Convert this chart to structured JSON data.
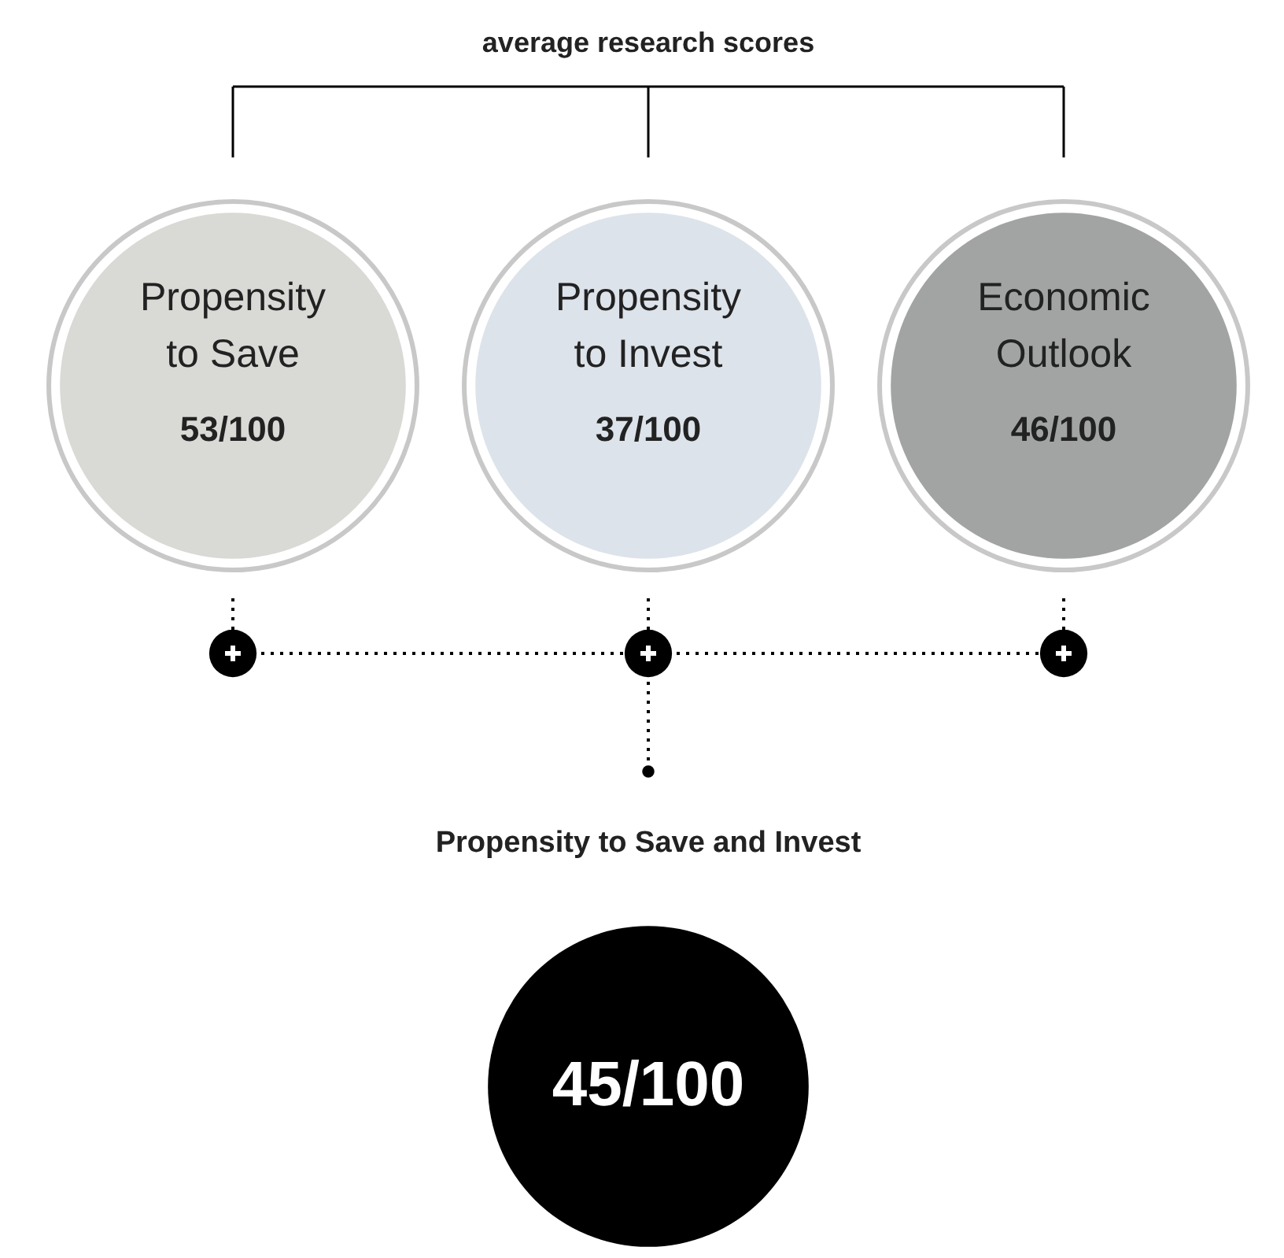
{
  "chart_data": {
    "type": "other",
    "title": "average research scores",
    "categories": [
      "Propensity to Save",
      "Propensity to Invest",
      "Economic Outlook",
      "Propensity to Save and Invest"
    ],
    "values": [
      53,
      37,
      46,
      45
    ],
    "value_labels": [
      "53/100",
      "37/100",
      "46/100",
      "45/100"
    ],
    "colors": [
      "#d9d9d6",
      "#dde3ea",
      "#a2a4a4",
      "#000000"
    ]
  }
}
